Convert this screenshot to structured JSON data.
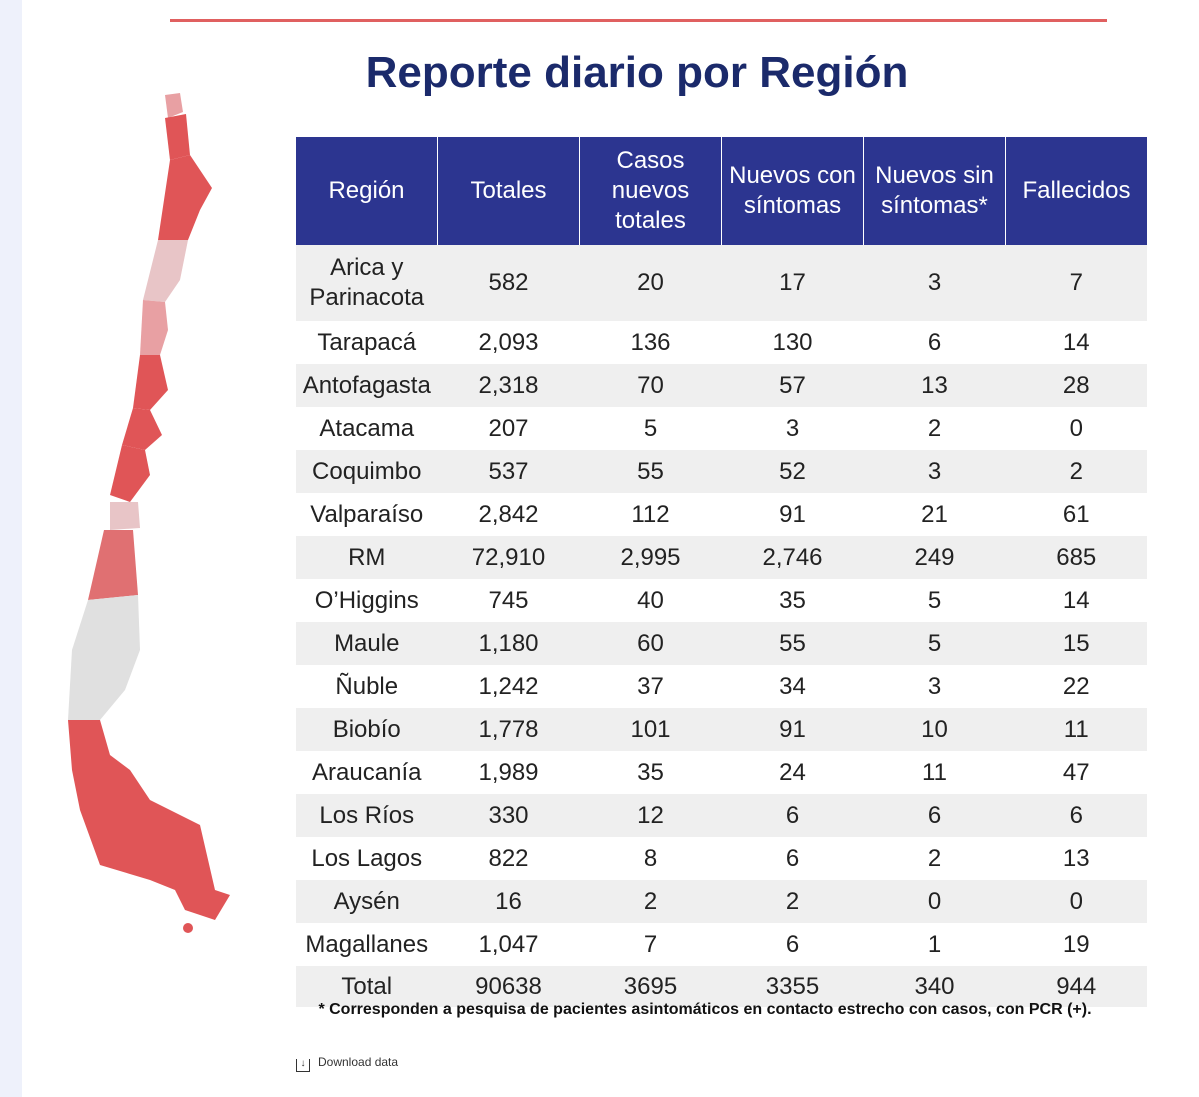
{
  "header": {
    "title": "Reporte diario por Región"
  },
  "table": {
    "header": [
      "Región",
      "Totales",
      "Casos nuevos totales",
      "Nuevos con síntomas",
      "Nuevos sin síntomas*",
      "Fallecidos"
    ],
    "rows": [
      [
        "Arica y Parinacota",
        "582",
        "20",
        "17",
        "3",
        "7"
      ],
      [
        "Tarapacá",
        "2,093",
        "136",
        "130",
        "6",
        "14"
      ],
      [
        "Antofagasta",
        "2,318",
        "70",
        "57",
        "13",
        "28"
      ],
      [
        "Atacama",
        "207",
        "5",
        "3",
        "2",
        "0"
      ],
      [
        "Coquimbo",
        "537",
        "55",
        "52",
        "3",
        "2"
      ],
      [
        "Valparaíso",
        "2,842",
        "112",
        "91",
        "21",
        "61"
      ],
      [
        "RM",
        "72,910",
        "2,995",
        "2,746",
        "249",
        "685"
      ],
      [
        "O’Higgins",
        "745",
        "40",
        "35",
        "5",
        "14"
      ],
      [
        "Maule",
        "1,180",
        "60",
        "55",
        "5",
        "15"
      ],
      [
        "Ñuble",
        "1,242",
        "37",
        "34",
        "3",
        "22"
      ],
      [
        "Biobío",
        "1,778",
        "101",
        "91",
        "10",
        "11"
      ],
      [
        "Araucanía",
        "1,989",
        "35",
        "24",
        "11",
        "47"
      ],
      [
        "Los Ríos",
        "330",
        "12",
        "6",
        "6",
        "6"
      ],
      [
        "Los Lagos",
        "822",
        "8",
        "6",
        "2",
        "13"
      ],
      [
        "Aysén",
        "16",
        "2",
        "2",
        "0",
        "0"
      ],
      [
        "Magallanes",
        "1,047",
        "7",
        "6",
        "1",
        "19"
      ],
      [
        "Total",
        "90638",
        "3695",
        "3355",
        "340",
        "944"
      ]
    ]
  },
  "footnote": "* Corresponden a pesquisa de pacientes asintomáticos en contacto estrecho con casos, con PCR (+).",
  "download": "Download data"
}
